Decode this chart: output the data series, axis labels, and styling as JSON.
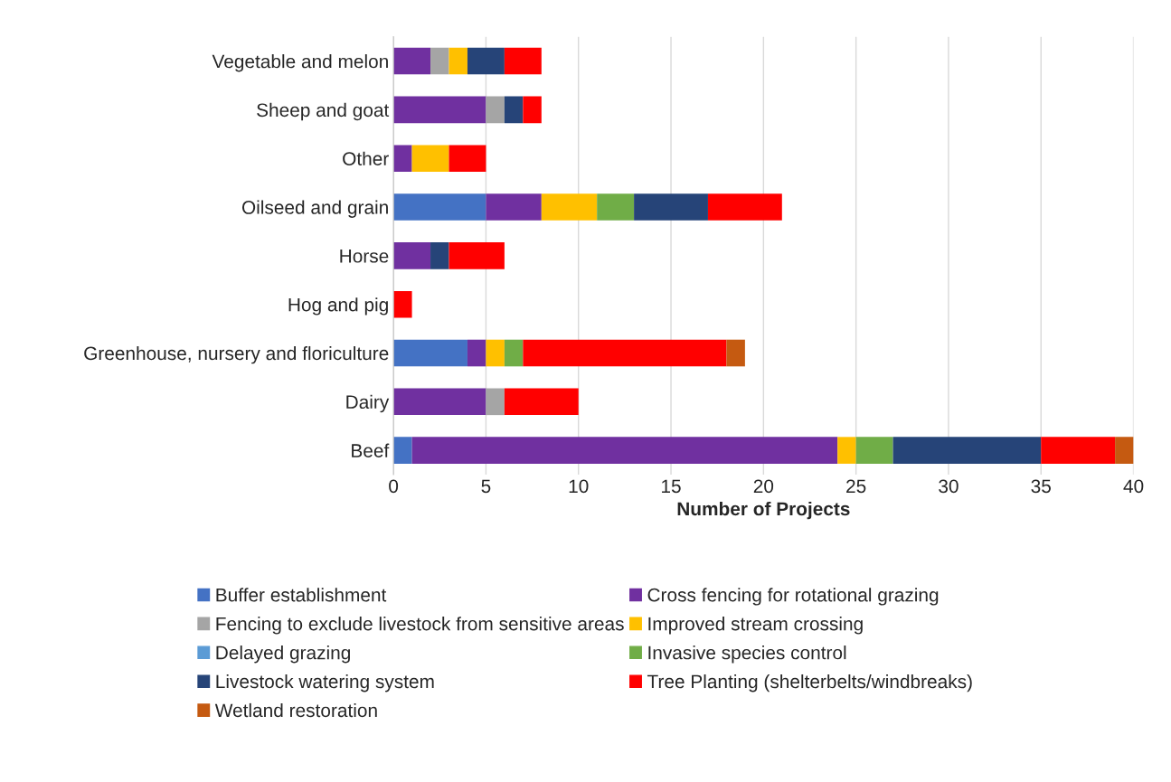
{
  "chart_data": {
    "type": "bar",
    "orientation": "horizontal",
    "stacked": true,
    "xlabel": "Number of Projects",
    "categories": [
      "Vegetable and melon",
      "Sheep and goat",
      "Other",
      "Oilseed and grain",
      "Horse",
      "Hog and pig",
      "Greenhouse, nursery and floriculture",
      "Dairy",
      "Beef"
    ],
    "series": [
      {
        "name": "Buffer establishment",
        "color": "#4472c4",
        "values": [
          0,
          0,
          0,
          5,
          0,
          0,
          4,
          0,
          1
        ]
      },
      {
        "name": "Cross fencing for rotational grazing",
        "color": "#7030a0",
        "values": [
          2,
          5,
          1,
          3,
          2,
          0,
          1,
          5,
          23
        ]
      },
      {
        "name": "Fencing to exclude livestock from sensitive areas",
        "color": "#a5a5a5",
        "values": [
          1,
          1,
          0,
          0,
          0,
          0,
          0,
          1,
          0
        ]
      },
      {
        "name": "Improved stream crossing",
        "color": "#ffc000",
        "values": [
          1,
          0,
          2,
          3,
          0,
          0,
          1,
          0,
          1
        ]
      },
      {
        "name": "Delayed grazing",
        "color": "#5b9bd5",
        "values": [
          0,
          0,
          0,
          0,
          0,
          0,
          0,
          0,
          0
        ]
      },
      {
        "name": "Invasive species control",
        "color": "#70ad47",
        "values": [
          0,
          0,
          0,
          2,
          0,
          0,
          1,
          0,
          2
        ]
      },
      {
        "name": "Livestock watering system",
        "color": "#264478",
        "values": [
          2,
          1,
          0,
          4,
          1,
          0,
          0,
          0,
          8
        ]
      },
      {
        "name": "Tree Planting (shelterbelts/windbreaks)",
        "color": "#ff0000",
        "values": [
          2,
          1,
          2,
          4,
          3,
          1,
          11,
          4,
          4
        ]
      },
      {
        "name": "Wetland restoration",
        "color": "#c55a11",
        "values": [
          0,
          0,
          0,
          0,
          0,
          0,
          1,
          0,
          1
        ]
      }
    ],
    "xlim": [
      0,
      40
    ],
    "xticks": [
      0,
      5,
      10,
      15,
      20,
      25,
      30,
      35,
      40
    ],
    "grid": "x",
    "legend": "bottom"
  }
}
